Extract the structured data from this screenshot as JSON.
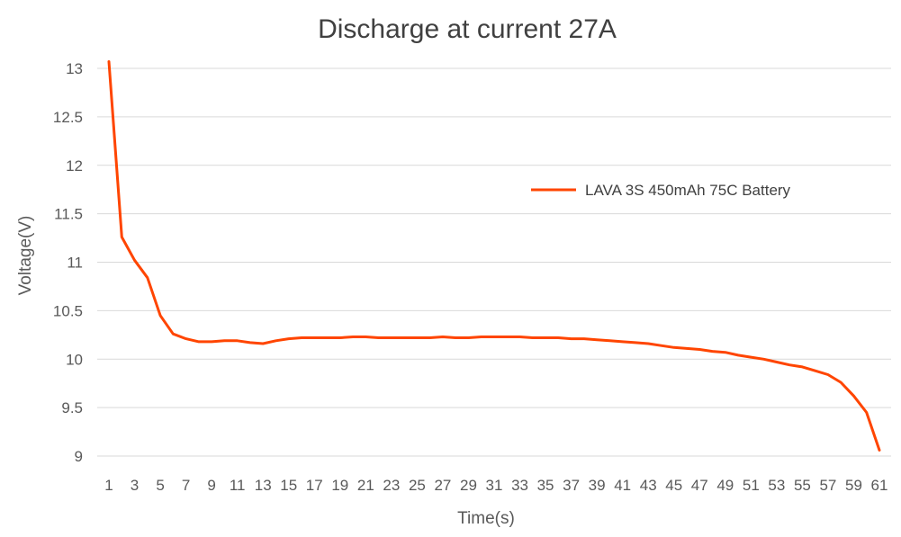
{
  "chart_data": {
    "type": "line",
    "title": "Discharge at current 27A",
    "xlabel": "Time(s)",
    "ylabel": "Voltage(V)",
    "ylim": [
      9,
      13
    ],
    "yticks": [
      "13",
      "12.5",
      "12",
      "11.5",
      "11",
      "10.5",
      "10",
      "9.5",
      "9"
    ],
    "xticks": [
      "1",
      "3",
      "5",
      "7",
      "9",
      "11",
      "13",
      "15",
      "17",
      "19",
      "21",
      "23",
      "25",
      "27",
      "29",
      "31",
      "33",
      "35",
      "37",
      "39",
      "41",
      "43",
      "45",
      "47",
      "49",
      "51",
      "53",
      "55",
      "57",
      "59",
      "61"
    ],
    "grid": "horizontal",
    "legend_position": "right",
    "series": [
      {
        "name": "LAVA 3S 450mAh 75C Battery",
        "color": "#ff4500",
        "x": [
          1,
          2,
          3,
          4,
          5,
          6,
          7,
          8,
          9,
          10,
          11,
          12,
          13,
          14,
          15,
          16,
          17,
          18,
          19,
          20,
          21,
          22,
          23,
          24,
          25,
          26,
          27,
          28,
          29,
          30,
          31,
          32,
          33,
          34,
          35,
          36,
          37,
          38,
          39,
          40,
          41,
          42,
          43,
          44,
          45,
          46,
          47,
          48,
          49,
          50,
          51,
          52,
          53,
          54,
          55,
          56,
          57,
          58,
          59,
          60,
          61
        ],
        "values": [
          13.07,
          11.26,
          11.02,
          10.84,
          10.45,
          10.26,
          10.21,
          10.18,
          10.18,
          10.19,
          10.19,
          10.17,
          10.16,
          10.19,
          10.21,
          10.22,
          10.22,
          10.22,
          10.22,
          10.23,
          10.23,
          10.22,
          10.22,
          10.22,
          10.22,
          10.22,
          10.23,
          10.22,
          10.22,
          10.23,
          10.23,
          10.23,
          10.23,
          10.22,
          10.22,
          10.22,
          10.21,
          10.21,
          10.2,
          10.19,
          10.18,
          10.17,
          10.16,
          10.14,
          10.12,
          10.11,
          10.1,
          10.08,
          10.07,
          10.04,
          10.02,
          10.0,
          9.97,
          9.94,
          9.92,
          9.88,
          9.84,
          9.76,
          9.62,
          9.45,
          9.06
        ]
      }
    ]
  }
}
